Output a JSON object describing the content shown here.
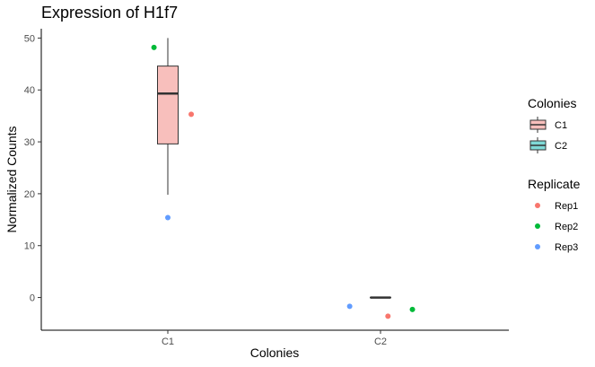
{
  "chart_data": {
    "type": "box",
    "title": "Expression of H1f7",
    "xlabel": "Colonies",
    "ylabel": "Normalized Counts",
    "categories": [
      "C1",
      "C2"
    ],
    "ylim": [
      -6.3,
      51.8
    ],
    "yticks": [
      0,
      10,
      20,
      30,
      40,
      50
    ],
    "boxes": [
      {
        "category": "C1",
        "min": 19.8,
        "q1": 29.6,
        "median": 39.3,
        "q3": 44.6,
        "max": 50.0,
        "fill": "#f8bfbc"
      },
      {
        "category": "C2",
        "min": 0,
        "q1": 0,
        "median": 0,
        "q3": 0,
        "max": 0,
        "fill": "#7fd9d6"
      }
    ],
    "points": [
      {
        "category": "C1",
        "replicate": "Rep1",
        "y": 35.3,
        "jitter": 0.22
      },
      {
        "category": "C1",
        "replicate": "Rep2",
        "y": 48.2,
        "jitter": -0.13
      },
      {
        "category": "C1",
        "replicate": "Rep3",
        "y": 15.4,
        "jitter": 0.0
      },
      {
        "category": "C2",
        "replicate": "Rep1",
        "y": -3.6,
        "jitter": 0.07
      },
      {
        "category": "C2",
        "replicate": "Rep2",
        "y": -2.3,
        "jitter": 0.3
      },
      {
        "category": "C2",
        "replicate": "Rep3",
        "y": -1.7,
        "jitter": -0.29
      }
    ],
    "legends": [
      {
        "title": "Colonies",
        "kind": "box",
        "entries": [
          {
            "label": "C1",
            "color": "#f8bfbc"
          },
          {
            "label": "C2",
            "color": "#7fd9d6"
          }
        ]
      },
      {
        "title": "Replicate",
        "kind": "point",
        "entries": [
          {
            "label": "Rep1",
            "color": "#f8766d"
          },
          {
            "label": "Rep2",
            "color": "#00ba38"
          },
          {
            "label": "Rep3",
            "color": "#619cff"
          }
        ]
      }
    ],
    "replicate_colors": {
      "Rep1": "#f8766d",
      "Rep2": "#00ba38",
      "Rep3": "#619cff"
    },
    "grid": false,
    "legend_position": "right"
  }
}
